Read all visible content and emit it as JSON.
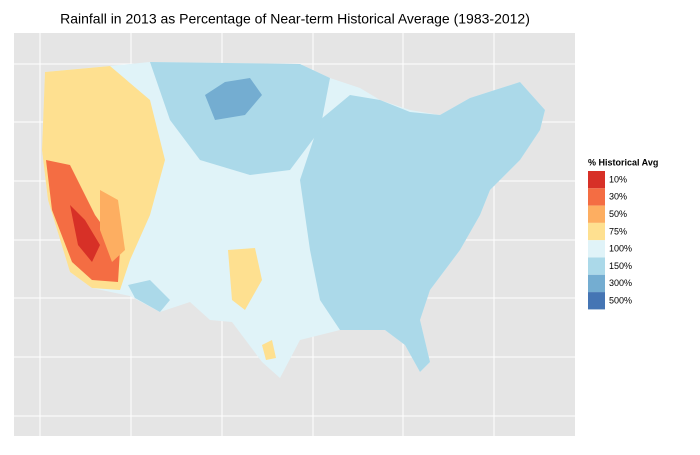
{
  "title": "Rainfall in 2013 as Percentage of Near-term Historical Average (1983-2012)",
  "legend": {
    "title": "% Historical Avg",
    "items": [
      {
        "label": "10%",
        "color": "#d73027"
      },
      {
        "label": "30%",
        "color": "#f46d43"
      },
      {
        "label": "50%",
        "color": "#fdae61"
      },
      {
        "label": "75%",
        "color": "#fee090"
      },
      {
        "label": "100%",
        "color": "#e0f3f8"
      },
      {
        "label": "150%",
        "color": "#abd9e9"
      },
      {
        "label": "300%",
        "color": "#74add1"
      },
      {
        "label": "500%",
        "color": "#4575b4"
      }
    ]
  }
}
